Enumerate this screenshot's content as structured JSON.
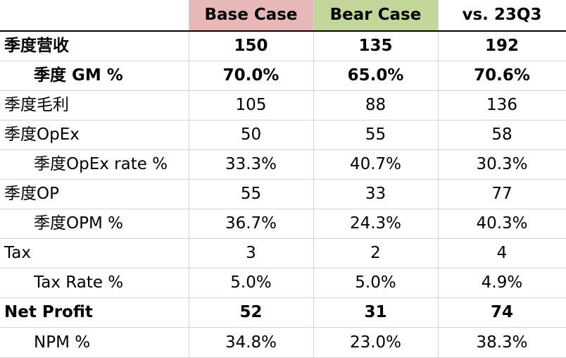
{
  "header": {
    "base_label": "Base Case",
    "bear_label": "Bear Case",
    "vs_label": "vs. 23Q3"
  },
  "colors": {
    "base_header_bg": "#e6b8b7",
    "bear_header_bg": "#c4d79b",
    "gridline": "#d4d4d4"
  },
  "rows": [
    {
      "label": "季度营收",
      "base": "150",
      "bear": "135",
      "vs": "192"
    },
    {
      "label": "季度 GM %",
      "base": "70.0%",
      "bear": "65.0%",
      "vs": "70.6%"
    },
    {
      "label": "季度毛利",
      "base": "105",
      "bear": "88",
      "vs": "136"
    },
    {
      "label": "季度OpEx",
      "base": "50",
      "bear": "55",
      "vs": "58"
    },
    {
      "label": "季度OpEx rate %",
      "base": "33.3%",
      "bear": "40.7%",
      "vs": "30.3%"
    },
    {
      "label": "季度OP",
      "base": "55",
      "bear": "33",
      "vs": "77"
    },
    {
      "label": "季度OPM %",
      "base": "36.7%",
      "bear": "24.3%",
      "vs": "40.3%"
    },
    {
      "label": "Tax",
      "base": "3",
      "bear": "2",
      "vs": "4"
    },
    {
      "label": "Tax Rate %",
      "base": "5.0%",
      "bear": "5.0%",
      "vs": "4.9%"
    },
    {
      "label": "Net Profit",
      "base": "52",
      "bear": "31",
      "vs": "74"
    },
    {
      "label": "NPM %",
      "base": "34.8%",
      "bear": "23.0%",
      "vs": "38.3%"
    }
  ]
}
